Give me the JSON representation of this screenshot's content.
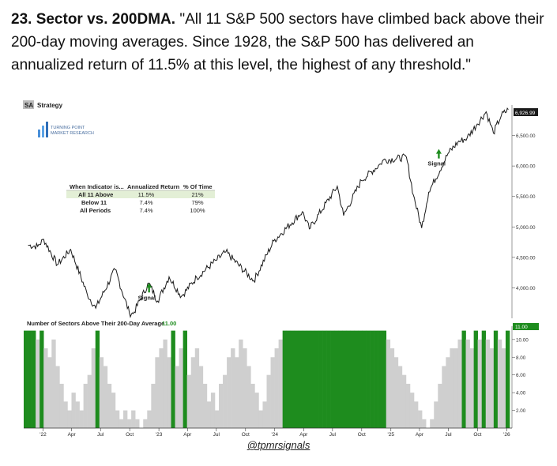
{
  "heading": {
    "number_title": "23. Sector vs. 200DMA.",
    "quote": "\"All 11 S&P 500 sectors have climbed back above their 200-day moving averages. Since 1928, the S&P 500 has delivered an annualized return of 11.5% at this level, the highest of any threshold.\""
  },
  "badge": {
    "sa": "SA",
    "strategy": "Strategy"
  },
  "logo": {
    "line1": "TURNING POINT",
    "line2": "MARKET RESEARCH"
  },
  "table": {
    "headers": [
      "When Indicator is...",
      "Annualized Return",
      "% Of Time"
    ],
    "rows": [
      [
        "All 11 Above",
        "11.5%",
        "21%"
      ],
      [
        "Below 11",
        "7.4%",
        "79%"
      ],
      [
        "All Periods",
        "7.4%",
        "100%"
      ]
    ]
  },
  "signals": [
    "Signal",
    "Signal"
  ],
  "lower_panel": {
    "title": "Number of Sectors Above Their 200-Day Average",
    "current": "11.00"
  },
  "handle": "@tpmrsignals",
  "colors": {
    "green": "#1e8c1e",
    "gray": "#cfcfcf",
    "price_line": "#1a1a1a",
    "table_highlight": "#e3efd6"
  },
  "chart_data": [
    {
      "type": "line",
      "series": [
        {
          "name": "",
          "x": [
            "2021-11-15",
            "2021-12-15",
            "2022-01-03",
            "2022-02-15",
            "2022-03-29",
            "2022-05-20",
            "2022-06-16",
            "2022-08-16",
            "2022-09-30",
            "2022-10-12",
            "2022-11-30",
            "2022-12-28",
            "2023-02-02",
            "2023-03-13",
            "2023-04-30",
            "2023-06-30",
            "2023-07-31",
            "2023-10-27",
            "2023-12-29",
            "2024-03-28",
            "2024-04-19",
            "2024-07-16",
            "2024-08-05",
            "2024-09-30",
            "2024-11-29",
            "2024-12-06",
            "2025-02-19",
            "2025-03-13",
            "2025-04-08",
            "2025-04-30",
            "2025-06-30",
            "2025-07-31",
            "2025-08-29",
            "2025-09-30",
            "2025-10-28",
            "2025-11-20",
            "2025-12-15",
            "2026-01-06"
          ],
          "values": [
            4700,
            4680,
            4796,
            4380,
            4630,
            3900,
            3666,
            4300,
            3585,
            3577,
            4080,
            3783,
            4180,
            3860,
            4170,
            4450,
            4590,
            4117,
            4770,
            5250,
            4967,
            5667,
            5186,
            5762,
            6032,
            6090,
            6144,
            5521,
            4982,
            5570,
            6205,
            6389,
            6460,
            6688,
            6890,
            6540,
            6830,
            6926
          ]
        }
      ],
      "ylim": [
        3500,
        7000
      ],
      "yticks": [
        "4,000.00",
        "4,500.00",
        "5,000.00",
        "5,500.00",
        "6,000.00",
        "6,500.00"
      ],
      "last_value_label": "6,926.99",
      "annotations": [
        {
          "text": "Signal",
          "x": "2022-12-01",
          "y": 3950
        },
        {
          "text": "Signal",
          "x": "2025-06-01",
          "y": 6150
        }
      ]
    },
    {
      "type": "bar",
      "title": "Number of Sectors Above Their 200-Day Average",
      "ylim": [
        0,
        11.5
      ],
      "yticks": [
        "2.00",
        "4.00",
        "6.00",
        "8.00",
        "10.00"
      ],
      "last_value_label": "11.00",
      "xticks": [
        "'22",
        "Apr",
        "Jul",
        "Oct",
        "'23",
        "Apr",
        "Jul",
        "Oct",
        "'24",
        "Apr",
        "Jul",
        "Oct",
        "'25",
        "Apr",
        "Jul",
        "Oct",
        "'26"
      ],
      "series": [
        {
          "name": "",
          "values": [
            11,
            11,
            11,
            10,
            11,
            9,
            8,
            10,
            7,
            5,
            3,
            2,
            4,
            3,
            2,
            5,
            6,
            9,
            11,
            8,
            7,
            5,
            4,
            2,
            1,
            2,
            1,
            2,
            1,
            0,
            1,
            2,
            5,
            8,
            9,
            10,
            8,
            11,
            7,
            9,
            11,
            6,
            8,
            9,
            7,
            5,
            3,
            4,
            2,
            5,
            6,
            8,
            9,
            8,
            10,
            9,
            7,
            5,
            4,
            2,
            3,
            6,
            8,
            9,
            10,
            11,
            11,
            11,
            11,
            11,
            11,
            11,
            11,
            11,
            11,
            11,
            11,
            11,
            11,
            11,
            11,
            11,
            11,
            11,
            11,
            11,
            11,
            11,
            11,
            11,
            11,
            10,
            9,
            8,
            7,
            6,
            5,
            4,
            3,
            2,
            1,
            0,
            1,
            3,
            5,
            7,
            8,
            9,
            9,
            10,
            11,
            10,
            9,
            11,
            10,
            11,
            10,
            9,
            11,
            10,
            9,
            11
          ]
        }
      ]
    }
  ]
}
